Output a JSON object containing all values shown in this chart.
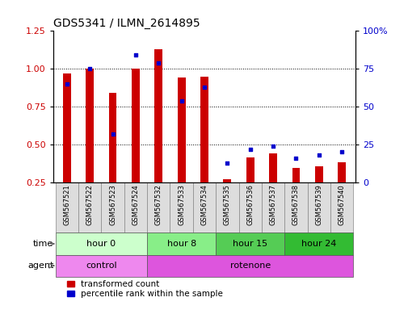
{
  "title": "GDS5341 / ILMN_2614895",
  "samples": [
    "GSM567521",
    "GSM567522",
    "GSM567523",
    "GSM567524",
    "GSM567532",
    "GSM567533",
    "GSM567534",
    "GSM567535",
    "GSM567536",
    "GSM567537",
    "GSM567538",
    "GSM567539",
    "GSM567540"
  ],
  "transformed_count": [
    0.97,
    1.0,
    0.84,
    1.0,
    1.13,
    0.945,
    0.95,
    0.27,
    0.415,
    0.44,
    0.345,
    0.355,
    0.385
  ],
  "percentile_rank": [
    65,
    75,
    32,
    84,
    79,
    54,
    63,
    13,
    22,
    24,
    16,
    18,
    20
  ],
  "ylim_left": [
    0.25,
    1.25
  ],
  "ylim_right": [
    0,
    100
  ],
  "bar_color": "#cc0000",
  "blue_color": "#0000cc",
  "grid_color": "#000000",
  "yticks_left": [
    0.25,
    0.5,
    0.75,
    1.0,
    1.25
  ],
  "yticks_right": [
    0,
    25,
    50,
    75,
    100
  ],
  "time_groups": [
    {
      "label": "hour 0",
      "start": 0,
      "end": 4,
      "color": "#ccffcc"
    },
    {
      "label": "hour 8",
      "start": 4,
      "end": 7,
      "color": "#88ee88"
    },
    {
      "label": "hour 15",
      "start": 7,
      "end": 10,
      "color": "#55cc55"
    },
    {
      "label": "hour 24",
      "start": 10,
      "end": 13,
      "color": "#33bb33"
    }
  ],
  "agent_groups": [
    {
      "label": "control",
      "start": 0,
      "end": 4,
      "color": "#ee88ee"
    },
    {
      "label": "rotenone",
      "start": 4,
      "end": 13,
      "color": "#dd55dd"
    }
  ],
  "legend_red": "transformed count",
  "legend_blue": "percentile rank within the sample",
  "time_label": "time",
  "agent_label": "agent",
  "bar_width": 0.35,
  "bg_color": "#ffffff",
  "plot_bg": "#ffffff",
  "tick_label_color_left": "#cc0000",
  "tick_label_color_right": "#0000cc",
  "sample_cell_color": "#dddddd",
  "sample_cell_edge": "#888888"
}
